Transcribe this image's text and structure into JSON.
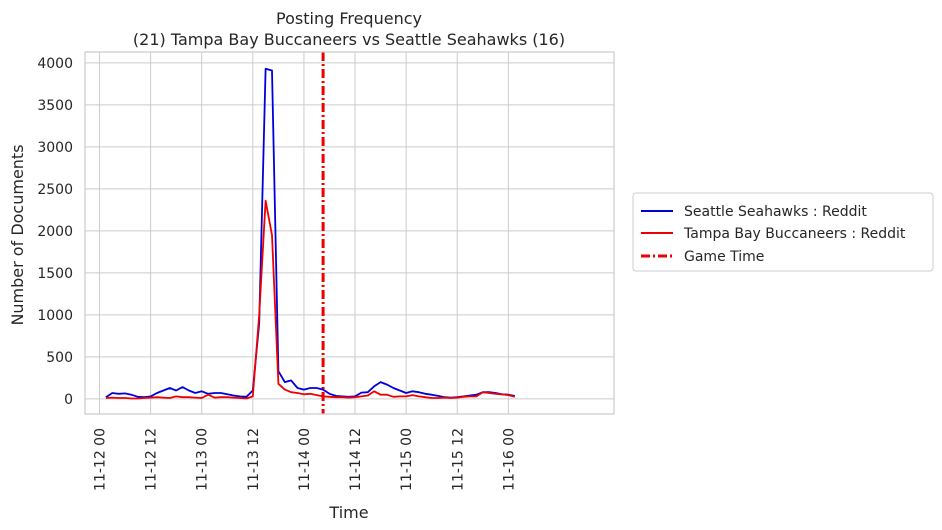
{
  "chart_data": {
    "type": "line",
    "title": "Posting Frequency",
    "subtitle": "(21) Tampa Bay Buccaneers vs Seattle Seahawks (16)",
    "xlabel": "Time",
    "ylabel": "Number of Documents",
    "x_unit": "hours since 11-12 00",
    "xlim": [
      -3.4,
      120.8
    ],
    "ylim": [
      -180,
      4130
    ],
    "grid": true,
    "legend_position": "right",
    "x_ticks": [
      {
        "value": 0,
        "label": "11-12 00"
      },
      {
        "value": 12,
        "label": "11-12 12"
      },
      {
        "value": 24,
        "label": "11-13 00"
      },
      {
        "value": 36,
        "label": "11-13 12"
      },
      {
        "value": 48,
        "label": "11-14 00"
      },
      {
        "value": 60,
        "label": "11-14 12"
      },
      {
        "value": 72,
        "label": "11-15 00"
      },
      {
        "value": 84,
        "label": "11-15 12"
      },
      {
        "value": 96,
        "label": "11-16 00"
      }
    ],
    "y_ticks": [
      {
        "value": 0,
        "label": "0"
      },
      {
        "value": 500,
        "label": "500"
      },
      {
        "value": 1000,
        "label": "1000"
      },
      {
        "value": 1500,
        "label": "1500"
      },
      {
        "value": 2000,
        "label": "2000"
      },
      {
        "value": 2500,
        "label": "2500"
      },
      {
        "value": 3000,
        "label": "3000"
      },
      {
        "value": 3500,
        "label": "3500"
      },
      {
        "value": 4000,
        "label": "4000"
      }
    ],
    "x": [
      1.5,
      3,
      4.5,
      6,
      7.5,
      9,
      10.5,
      12,
      13.5,
      15,
      16.5,
      18,
      19.5,
      21,
      22.5,
      24,
      25.5,
      27,
      28.5,
      30,
      31.5,
      33,
      34.5,
      36,
      37.5,
      39,
      40.5,
      42,
      43.5,
      45,
      46.5,
      48,
      49.5,
      51,
      52.5,
      54,
      55.5,
      57,
      58.5,
      60,
      61.5,
      63,
      64.5,
      66,
      67.5,
      69,
      70.5,
      72,
      73.5,
      75,
      76.5,
      78,
      79.5,
      81,
      82.5,
      84,
      85.5,
      87,
      88.5,
      90,
      91.5,
      93,
      94.5,
      96,
      97.5
    ],
    "series": [
      {
        "name": "Seattle Seahawks : Reddit",
        "color": "#0000dd",
        "values": [
          20,
          70,
          60,
          65,
          50,
          25,
          20,
          30,
          70,
          100,
          130,
          100,
          140,
          100,
          70,
          90,
          60,
          70,
          70,
          55,
          40,
          30,
          25,
          100,
          900,
          3930,
          3910,
          330,
          200,
          220,
          130,
          110,
          130,
          130,
          110,
          60,
          35,
          30,
          25,
          30,
          75,
          80,
          150,
          200,
          170,
          130,
          100,
          70,
          90,
          80,
          60,
          50,
          35,
          20,
          15,
          20,
          30,
          40,
          50,
          80,
          80,
          70,
          55,
          50,
          35
        ],
        "line_style": "solid"
      },
      {
        "name": "Tampa Bay Buccaneers : Reddit",
        "color": "#ee0000",
        "values": [
          10,
          15,
          10,
          10,
          5,
          5,
          10,
          15,
          20,
          15,
          10,
          30,
          20,
          20,
          15,
          10,
          50,
          15,
          20,
          20,
          15,
          10,
          5,
          30,
          1000,
          2360,
          1950,
          180,
          110,
          80,
          70,
          55,
          60,
          45,
          30,
          25,
          20,
          20,
          15,
          20,
          30,
          40,
          90,
          50,
          50,
          25,
          30,
          30,
          45,
          30,
          20,
          10,
          10,
          15,
          10,
          15,
          25,
          30,
          30,
          80,
          70,
          60,
          55,
          45,
          25
        ],
        "line_style": "solid"
      }
    ],
    "vertical_lines": [
      {
        "name": "Game Time",
        "x": 52.5,
        "color": "#ee0000",
        "line_style": "dash-dot"
      }
    ]
  }
}
